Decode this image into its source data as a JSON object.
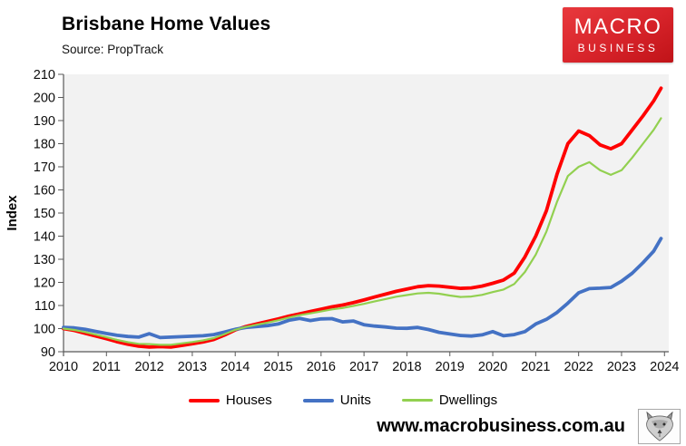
{
  "header": {
    "title": "Brisbane Home Values",
    "source": "Source: PropTrack"
  },
  "logo": {
    "line1": "MACRO",
    "line2": "BUSINESS",
    "brand_color": "#d7232a"
  },
  "footer": {
    "url": "www.macrobusiness.com.au"
  },
  "chart_data": {
    "type": "line",
    "title": "Brisbane Home Values",
    "subtitle": "Source: PropTrack",
    "xlabel": "",
    "ylabel": "Index",
    "ylim": [
      90,
      210
    ],
    "ytick_step": 10,
    "xlim": [
      2010,
      2024.1
    ],
    "xticks": [
      2010,
      2011,
      2012,
      2013,
      2014,
      2015,
      2016,
      2017,
      2018,
      2019,
      2020,
      2021,
      2022,
      2023,
      2024
    ],
    "grid": false,
    "plot_bg": "#f2f2f2",
    "legend_position": "bottom",
    "x": [
      2010.0,
      2010.25,
      2010.5,
      2010.75,
      2011.0,
      2011.25,
      2011.5,
      2011.75,
      2012.0,
      2012.25,
      2012.5,
      2012.75,
      2013.0,
      2013.25,
      2013.5,
      2013.75,
      2014.0,
      2014.25,
      2014.5,
      2014.75,
      2015.0,
      2015.25,
      2015.5,
      2015.75,
      2016.0,
      2016.25,
      2016.5,
      2016.75,
      2017.0,
      2017.25,
      2017.5,
      2017.75,
      2018.0,
      2018.25,
      2018.5,
      2018.75,
      2019.0,
      2019.25,
      2019.5,
      2019.75,
      2020.0,
      2020.25,
      2020.5,
      2020.75,
      2021.0,
      2021.25,
      2021.5,
      2021.75,
      2022.0,
      2022.25,
      2022.5,
      2022.75,
      2023.0,
      2023.25,
      2023.5,
      2023.75,
      2023.92
    ],
    "series": [
      {
        "name": "Houses",
        "color": "#ff0000",
        "width": 3.8,
        "values": [
          100.0,
          99.2,
          98.0,
          96.8,
          95.6,
          94.3,
          93.2,
          92.4,
          92.0,
          92.2,
          92.0,
          92.7,
          93.4,
          94.2,
          95.3,
          97.2,
          99.4,
          100.9,
          102.0,
          103.1,
          104.2,
          105.4,
          106.4,
          107.4,
          108.4,
          109.4,
          110.2,
          111.2,
          112.4,
          113.7,
          114.9,
          116.1,
          117.1,
          118.1,
          118.6,
          118.4,
          117.9,
          117.4,
          117.6,
          118.4,
          119.6,
          121.0,
          124.0,
          131.0,
          140.0,
          151.0,
          167.0,
          180.0,
          185.5,
          183.5,
          179.5,
          177.8,
          180.0,
          186.0,
          192.0,
          198.5,
          204.0
        ]
      },
      {
        "name": "Units",
        "color": "#4472c4",
        "width": 3.8,
        "values": [
          100.5,
          100.3,
          99.7,
          98.8,
          97.9,
          97.1,
          96.6,
          96.3,
          97.8,
          96.1,
          96.3,
          96.5,
          96.7,
          96.9,
          97.4,
          98.5,
          99.7,
          100.5,
          100.9,
          101.3,
          102.0,
          103.6,
          104.4,
          103.5,
          104.2,
          104.3,
          102.9,
          103.3,
          101.7,
          101.1,
          100.7,
          100.2,
          100.1,
          100.5,
          99.6,
          98.4,
          97.7,
          97.0,
          96.8,
          97.3,
          98.7,
          96.9,
          97.4,
          98.7,
          102.0,
          104.0,
          107.0,
          111.0,
          115.5,
          117.3,
          117.5,
          117.8,
          120.5,
          124.0,
          128.5,
          133.5,
          139.0
        ]
      },
      {
        "name": "Dwellings",
        "color": "#92d050",
        "width": 2.2,
        "values": [
          100.0,
          99.4,
          98.5,
          97.4,
          96.3,
          95.1,
          94.1,
          93.4,
          93.3,
          93.0,
          93.0,
          93.6,
          94.2,
          94.9,
          95.9,
          97.6,
          99.5,
          100.7,
          101.7,
          102.6,
          103.6,
          104.8,
          105.8,
          106.6,
          107.4,
          108.3,
          108.9,
          109.8,
          110.7,
          111.8,
          112.8,
          113.8,
          114.5,
          115.2,
          115.5,
          115.1,
          114.3,
          113.7,
          113.9,
          114.6,
          115.8,
          116.9,
          119.3,
          124.5,
          132.0,
          142.0,
          155.0,
          166.0,
          170.0,
          172.0,
          168.5,
          166.5,
          168.5,
          174.0,
          180.0,
          186.0,
          191.0
        ]
      }
    ]
  }
}
